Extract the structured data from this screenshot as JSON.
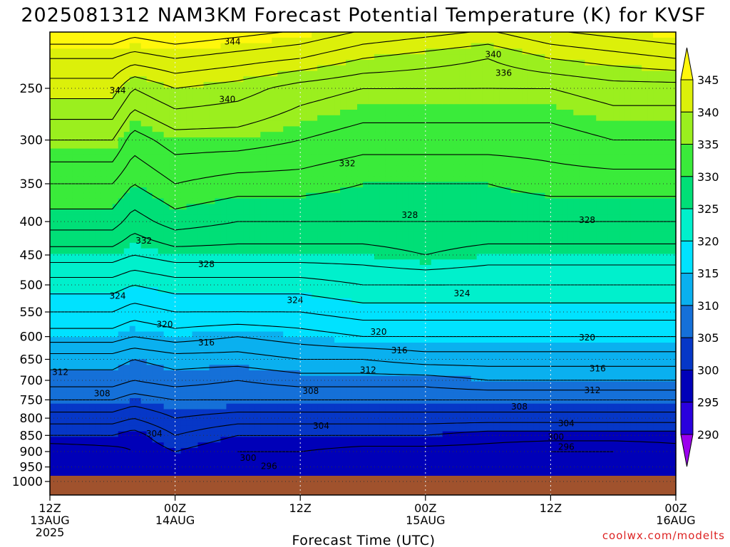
{
  "chart_data": {
    "type": "heatmap",
    "title": "2025081312 NAM3KM Forecast Potential Temperature (K) for KVSF",
    "xlabel": "Forecast Time (UTC)",
    "ylabel": "",
    "y_axis": {
      "units": "hPa",
      "inverted": true,
      "scale": "log",
      "ticks": [
        250,
        300,
        350,
        400,
        450,
        500,
        550,
        600,
        650,
        700,
        750,
        800,
        850,
        900,
        950,
        1000
      ]
    },
    "x_axis": {
      "ticks": [
        {
          "hour": 0,
          "label": "12Z",
          "date": "13AUG",
          "year": "2025"
        },
        {
          "hour": 12,
          "label": "00Z",
          "date": "14AUG",
          "year": ""
        },
        {
          "hour": 24,
          "label": "12Z",
          "date": "",
          "year": ""
        },
        {
          "hour": 36,
          "label": "00Z",
          "date": "15AUG",
          "year": ""
        },
        {
          "hour": 48,
          "label": "12Z",
          "date": "",
          "year": ""
        },
        {
          "hour": 60,
          "label": "00Z",
          "date": "16AUG",
          "year": ""
        }
      ],
      "range_hours": [
        0,
        60
      ]
    },
    "grid": true,
    "colorbar": {
      "placement": "right",
      "levels": [
        290,
        295,
        300,
        305,
        310,
        315,
        320,
        325,
        330,
        335,
        340,
        345
      ],
      "colors": [
        "#9b00ee",
        "#2a00dd",
        "#0000b8",
        "#0637c7",
        "#1570d8",
        "#0ab0ef",
        "#00e2ff",
        "#00f0cc",
        "#00df77",
        "#3aeb3a",
        "#9bef1e",
        "#dcf00a",
        "#fff70c"
      ]
    },
    "profiles": [
      {
        "hour": 0,
        "theta": [
          344,
          341,
          336,
          332,
          329,
          325,
          321,
          318,
          315,
          311,
          309,
          306,
          303,
          300,
          296
        ]
      },
      {
        "hour": 6,
        "theta": [
          344,
          341,
          336,
          332,
          329,
          325,
          321,
          318,
          315,
          311,
          309,
          306,
          303,
          300,
          297
        ]
      },
      {
        "hour": 8,
        "theta": [
          343,
          338,
          333,
          330,
          327,
          324,
          320,
          317,
          314,
          310,
          308,
          305,
          302,
          299,
          298
        ]
      },
      {
        "hour": 12,
        "theta": [
          344,
          340,
          335,
          332,
          329,
          325,
          321,
          318,
          315,
          311,
          309,
          306,
          304,
          302,
          300
        ]
      },
      {
        "hour": 18,
        "theta": [
          343,
          339,
          335,
          331,
          328,
          325,
          321,
          318,
          314,
          311,
          308,
          306,
          303,
          300,
          298
        ]
      },
      {
        "hour": 24,
        "theta": [
          342,
          337,
          334,
          331,
          328,
          325,
          321,
          318,
          315,
          312,
          309,
          306,
          303,
          300,
          298
        ]
      },
      {
        "hour": 30,
        "theta": [
          340,
          336,
          333,
          330,
          328,
          325,
          322,
          319,
          316,
          312,
          309,
          306,
          303,
          300,
          297
        ]
      },
      {
        "hour": 36,
        "theta": [
          339,
          336,
          333,
          330,
          328,
          326,
          322,
          319,
          316,
          313,
          309,
          306,
          303,
          300,
          297
        ]
      },
      {
        "hour": 42,
        "theta": [
          338,
          336,
          333,
          330,
          328,
          325,
          322,
          319,
          316,
          313,
          310,
          306,
          303,
          299,
          297
        ]
      },
      {
        "hour": 48,
        "theta": [
          340,
          336,
          333,
          331,
          328,
          325,
          322,
          319,
          316,
          313,
          310,
          306,
          303,
          299,
          296
        ]
      },
      {
        "hour": 54,
        "theta": [
          341,
          337,
          334,
          331,
          328,
          325,
          322,
          319,
          316,
          313,
          310,
          306,
          303,
          299,
          296
        ]
      },
      {
        "hour": 60,
        "theta": [
          342,
          337,
          334,
          331,
          328,
          325,
          322,
          319,
          316,
          313,
          310,
          306,
          303,
          299,
          297
        ]
      }
    ],
    "contour_labels": [
      {
        "text": "344",
        "hour": 17.5,
        "p": 212
      },
      {
        "text": "340",
        "hour": 42.5,
        "p": 222
      },
      {
        "text": "336",
        "hour": 43.5,
        "p": 237
      },
      {
        "text": "344",
        "hour": 6.5,
        "p": 252
      },
      {
        "text": "340",
        "hour": 17,
        "p": 260
      },
      {
        "text": "332",
        "hour": 28.5,
        "p": 326
      },
      {
        "text": "328",
        "hour": 34.5,
        "p": 391
      },
      {
        "text": "328",
        "hour": 51.5,
        "p": 398
      },
      {
        "text": "332",
        "hour": 9,
        "p": 428
      },
      {
        "text": "328",
        "hour": 15,
        "p": 465
      },
      {
        "text": "324",
        "hour": 6.5,
        "p": 520
      },
      {
        "text": "324",
        "hour": 23.5,
        "p": 528
      },
      {
        "text": "324",
        "hour": 39.5,
        "p": 515
      },
      {
        "text": "320",
        "hour": 11,
        "p": 575
      },
      {
        "text": "320",
        "hour": 31.5,
        "p": 590
      },
      {
        "text": "320",
        "hour": 51.5,
        "p": 602
      },
      {
        "text": "316",
        "hour": 15,
        "p": 613
      },
      {
        "text": "316",
        "hour": 33.5,
        "p": 630
      },
      {
        "text": "316",
        "hour": 52.5,
        "p": 672
      },
      {
        "text": "312",
        "hour": 1,
        "p": 680
      },
      {
        "text": "312",
        "hour": 30.5,
        "p": 675
      },
      {
        "text": "312",
        "hour": 52,
        "p": 725
      },
      {
        "text": "308",
        "hour": 5,
        "p": 733
      },
      {
        "text": "308",
        "hour": 25,
        "p": 727
      },
      {
        "text": "308",
        "hour": 45,
        "p": 768
      },
      {
        "text": "304",
        "hour": 10,
        "p": 845
      },
      {
        "text": "304",
        "hour": 26,
        "p": 822
      },
      {
        "text": "304",
        "hour": 49.5,
        "p": 815
      },
      {
        "text": "300",
        "hour": 19,
        "p": 920
      },
      {
        "text": "300",
        "hour": 48.5,
        "p": 855
      },
      {
        "text": "296",
        "hour": 21,
        "p": 948
      },
      {
        "text": "296",
        "hour": 49.5,
        "p": 885
      }
    ],
    "terrain": {
      "surface_pressure": 980,
      "color": "#a0522d"
    }
  },
  "credit": "coolwx.com/modelts"
}
